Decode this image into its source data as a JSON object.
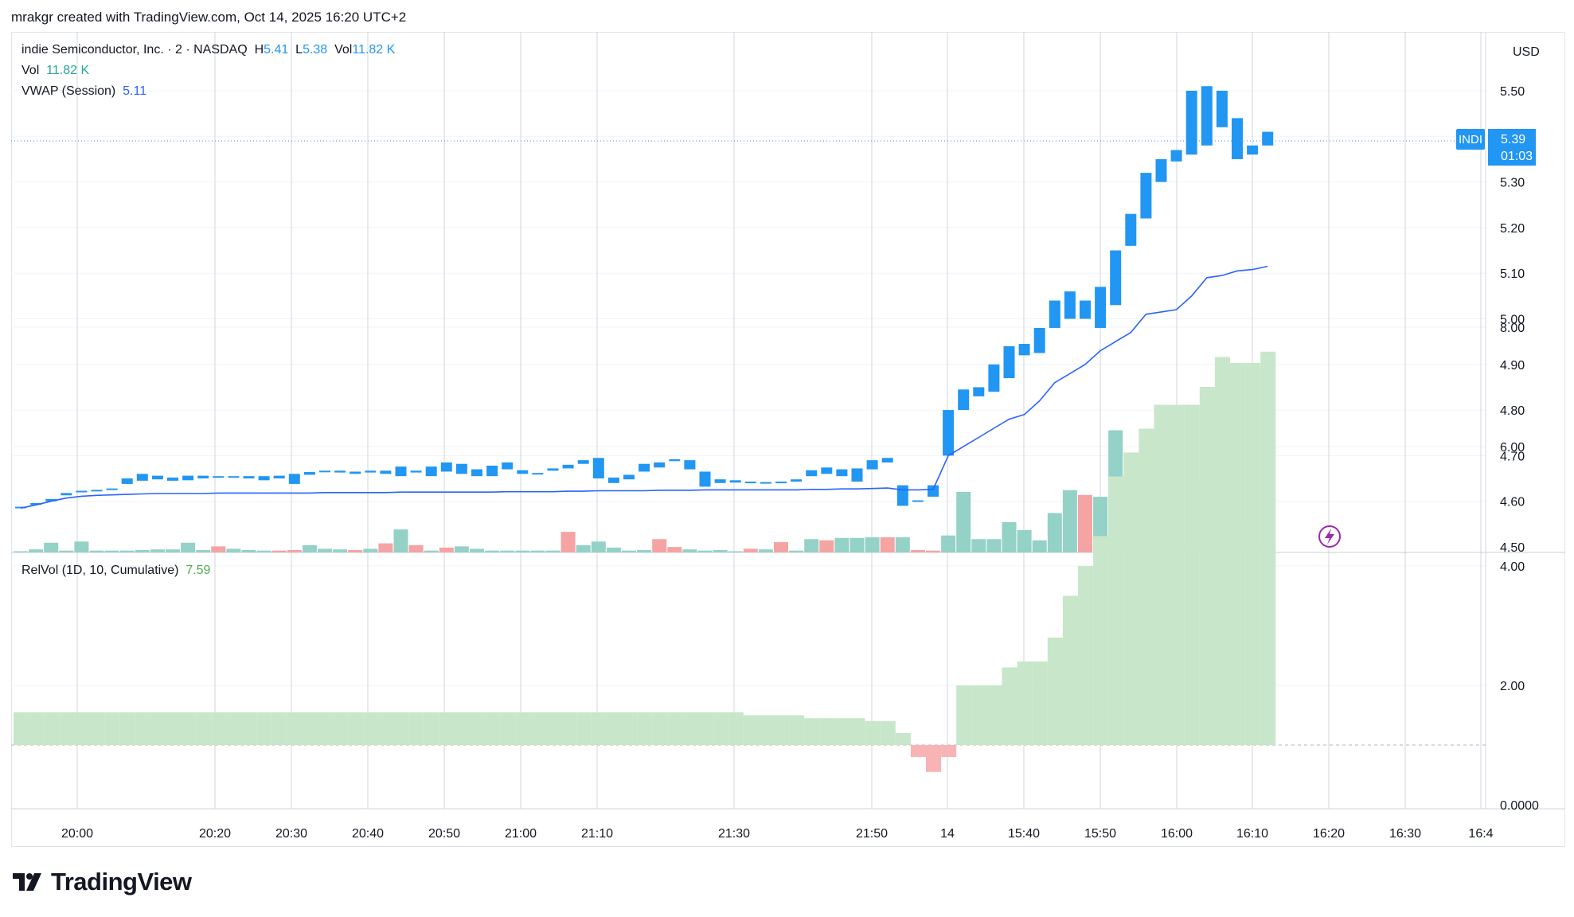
{
  "header": {
    "credit": "mrakgr created with TradingView.com, Oct 14, 2025 16:20 UTC+2"
  },
  "legend": {
    "symbol": "indie Semiconductor, Inc. · 2 · NASDAQ",
    "h_label": "H",
    "h_value": "5.41",
    "l_label": "L",
    "l_value": "5.38",
    "vol_label": "Vol",
    "vol_value": "11.82 K",
    "vol_row_label": "Vol",
    "vol_row_value": "11.82 K",
    "vwap_label": "VWAP (Session)",
    "vwap_value": "5.11",
    "relvol_label": "RelVol (1D, 10, Cumulative)",
    "relvol_value": "7.59"
  },
  "price_axis": {
    "currency": "USD"
  },
  "last_price": {
    "symbol": "INDI",
    "price": "5.39",
    "countdown": "01:03"
  },
  "footer": {
    "brand": "TradingView"
  },
  "colors": {
    "up": "#2196f3",
    "vol_up": "#94d1c7",
    "vol_down": "#f5a3a3",
    "vwap": "#2962ff",
    "relvol_pos": "#c8e6c9",
    "relvol_neg": "#f8b4b4",
    "grid": "#e0e3eb",
    "lightning": "#9c27b0"
  },
  "chart_data": {
    "type": "candlestick",
    "interval": "2",
    "price_range": [
      4.5,
      5.55
    ],
    "price_ticks": [
      "5.50",
      "5.30",
      "5.20",
      "5.10",
      "5.00",
      "4.90",
      "4.80",
      "4.70",
      "4.60",
      "4.50"
    ],
    "relvol_range": [
      0,
      8
    ],
    "relvol_ticks": [
      "8.00",
      "6.00",
      "4.00",
      "2.00",
      "0.0000"
    ],
    "time_ticks": [
      "20:00",
      "20:20",
      "20:30",
      "20:40",
      "20:50",
      "21:00",
      "21:10",
      "21:30",
      "21:50",
      "14",
      "15:40",
      "15:50",
      "16:00",
      "16:10",
      "16:20",
      "16:30",
      "16:4"
    ],
    "candles": [
      [
        4.585,
        4.588
      ],
      [
        4.592,
        4.596
      ],
      [
        4.6,
        4.605
      ],
      [
        4.613,
        4.618
      ],
      [
        4.622,
        4.623
      ],
      [
        4.624,
        4.625
      ],
      [
        4.627,
        4.628
      ],
      [
        4.638,
        4.65
      ],
      [
        4.645,
        4.66
      ],
      [
        4.648,
        4.656
      ],
      [
        4.645,
        4.652
      ],
      [
        4.646,
        4.656
      ],
      [
        4.65,
        4.656
      ],
      [
        4.653,
        4.655
      ],
      [
        4.654,
        4.655
      ],
      [
        4.65,
        4.655
      ],
      [
        4.646,
        4.655
      ],
      [
        4.65,
        4.656
      ],
      [
        4.638,
        4.66
      ],
      [
        4.658,
        4.664
      ],
      [
        4.665,
        4.667
      ],
      [
        4.663,
        4.667
      ],
      [
        4.66,
        4.665
      ],
      [
        4.663,
        4.667
      ],
      [
        4.66,
        4.667
      ],
      [
        4.655,
        4.676
      ],
      [
        4.663,
        4.667
      ],
      [
        4.655,
        4.676
      ],
      [
        4.665,
        4.685
      ],
      [
        4.66,
        4.682
      ],
      [
        4.655,
        4.67
      ],
      [
        4.655,
        4.678
      ],
      [
        4.67,
        4.685
      ],
      [
        4.66,
        4.668
      ],
      [
        4.661,
        4.662
      ],
      [
        4.667,
        4.672
      ],
      [
        4.672,
        4.68
      ],
      [
        4.682,
        4.69
      ],
      [
        4.65,
        4.695
      ],
      [
        4.64,
        4.652
      ],
      [
        4.648,
        4.658
      ],
      [
        4.665,
        4.682
      ],
      [
        4.674,
        4.685
      ],
      [
        4.688,
        4.692
      ],
      [
        4.67,
        4.69
      ],
      [
        4.632,
        4.665
      ],
      [
        4.64,
        4.648
      ],
      [
        4.641,
        4.646
      ],
      [
        4.64,
        4.643
      ],
      [
        4.64,
        4.642
      ],
      [
        4.64,
        4.643
      ],
      [
        4.643,
        4.648
      ],
      [
        4.655,
        4.668
      ],
      [
        4.66,
        4.674
      ],
      [
        4.655,
        4.67
      ],
      [
        4.643,
        4.672
      ],
      [
        4.67,
        4.69
      ],
      [
        4.685,
        4.695
      ],
      [
        4.59,
        4.635
      ],
      [
        4.6,
        4.602
      ],
      [
        4.61,
        4.635
      ],
      [
        4.7,
        4.8
      ],
      [
        4.8,
        4.845
      ],
      [
        4.83,
        4.85
      ],
      [
        4.84,
        4.9
      ],
      [
        4.87,
        4.94
      ],
      [
        4.92,
        4.945
      ],
      [
        4.925,
        4.98
      ],
      [
        4.98,
        5.04
      ],
      [
        5.0,
        5.06
      ],
      [
        5.0,
        5.04
      ],
      [
        4.98,
        5.07
      ],
      [
        5.03,
        5.15
      ],
      [
        5.16,
        5.23
      ],
      [
        5.22,
        5.32
      ],
      [
        5.3,
        5.35
      ],
      [
        5.345,
        5.37
      ],
      [
        5.36,
        5.5
      ],
      [
        5.38,
        5.51
      ],
      [
        5.42,
        5.5
      ],
      [
        5.35,
        5.44
      ],
      [
        5.36,
        5.38
      ],
      [
        5.38,
        5.41
      ]
    ],
    "volume": [
      [
        1,
        0.02
      ],
      [
        1,
        0.05
      ],
      [
        1,
        0.16
      ],
      [
        1,
        0.03
      ],
      [
        1,
        0.18
      ],
      [
        1,
        0.03
      ],
      [
        1,
        0.03
      ],
      [
        1,
        0.03
      ],
      [
        1,
        0.04
      ],
      [
        1,
        0.05
      ],
      [
        1,
        0.05
      ],
      [
        1,
        0.16
      ],
      [
        1,
        0.04
      ],
      [
        0,
        0.1
      ],
      [
        1,
        0.06
      ],
      [
        1,
        0.04
      ],
      [
        1,
        0.03
      ],
      [
        0,
        0.03
      ],
      [
        0,
        0.04
      ],
      [
        1,
        0.12
      ],
      [
        1,
        0.06
      ],
      [
        1,
        0.05
      ],
      [
        0,
        0.04
      ],
      [
        1,
        0.06
      ],
      [
        0,
        0.15
      ],
      [
        1,
        0.38
      ],
      [
        0,
        0.12
      ],
      [
        1,
        0.03
      ],
      [
        0,
        0.08
      ],
      [
        1,
        0.1
      ],
      [
        1,
        0.06
      ],
      [
        1,
        0.03
      ],
      [
        1,
        0.03
      ],
      [
        1,
        0.03
      ],
      [
        1,
        0.03
      ],
      [
        1,
        0.03
      ],
      [
        0,
        0.34
      ],
      [
        1,
        0.12
      ],
      [
        1,
        0.18
      ],
      [
        1,
        0.08
      ],
      [
        1,
        0.03
      ],
      [
        1,
        0.04
      ],
      [
        0,
        0.22
      ],
      [
        0,
        0.09
      ],
      [
        1,
        0.05
      ],
      [
        1,
        0.03
      ],
      [
        1,
        0.04
      ],
      [
        1,
        0.02
      ],
      [
        0,
        0.06
      ],
      [
        1,
        0.05
      ],
      [
        0,
        0.17
      ],
      [
        1,
        0.03
      ],
      [
        1,
        0.22
      ],
      [
        0,
        0.2
      ],
      [
        1,
        0.24
      ],
      [
        1,
        0.24
      ],
      [
        1,
        0.25
      ],
      [
        0,
        0.25
      ],
      [
        1,
        0.25
      ],
      [
        0,
        0.04
      ],
      [
        0,
        0.03
      ],
      [
        1,
        0.28
      ],
      [
        1,
        1.0
      ],
      [
        1,
        0.22
      ],
      [
        1,
        0.22
      ],
      [
        1,
        0.5
      ],
      [
        1,
        0.37
      ],
      [
        1,
        0.2
      ],
      [
        1,
        0.65
      ],
      [
        1,
        1.03
      ],
      [
        0,
        0.95
      ],
      [
        1,
        0.92
      ],
      [
        1,
        2.02
      ],
      [
        1,
        1.29
      ],
      [
        1,
        0.9
      ],
      [
        1,
        1.0
      ],
      [
        1,
        0.25
      ],
      [
        1,
        0.12
      ],
      [
        1,
        1.2
      ],
      [
        1,
        1.4
      ],
      [
        0,
        0.24
      ],
      [
        0,
        0.43
      ],
      [
        0,
        0.14
      ]
    ],
    "vwap": [
      4.585,
      4.592,
      4.6,
      4.607,
      4.611,
      4.613,
      4.614,
      4.615,
      4.616,
      4.617,
      4.617,
      4.617,
      4.617,
      4.618,
      4.618,
      4.618,
      4.618,
      4.618,
      4.618,
      4.618,
      4.619,
      4.619,
      4.619,
      4.619,
      4.619,
      4.62,
      4.62,
      4.62,
      4.62,
      4.62,
      4.62,
      4.62,
      4.621,
      4.621,
      4.621,
      4.621,
      4.622,
      4.622,
      4.623,
      4.623,
      4.623,
      4.623,
      4.624,
      4.624,
      4.624,
      4.625,
      4.625,
      4.625,
      4.625,
      4.625,
      4.625,
      4.625,
      4.626,
      4.626,
      4.627,
      4.627,
      4.628,
      4.629,
      4.625,
      4.625,
      4.626,
      4.7,
      4.72,
      4.74,
      4.76,
      4.78,
      4.79,
      4.82,
      4.86,
      4.88,
      4.9,
      4.93,
      4.95,
      4.97,
      5.01,
      5.015,
      5.02,
      5.05,
      5.09,
      5.095,
      5.105,
      5.108,
      5.115
    ],
    "relvol": [
      1.55,
      1.55,
      1.55,
      1.55,
      1.55,
      1.55,
      1.55,
      1.55,
      1.55,
      1.55,
      1.55,
      1.55,
      1.55,
      1.55,
      1.55,
      1.55,
      1.55,
      1.55,
      1.55,
      1.55,
      1.55,
      1.55,
      1.55,
      1.55,
      1.55,
      1.55,
      1.55,
      1.55,
      1.55,
      1.55,
      1.55,
      1.55,
      1.55,
      1.55,
      1.55,
      1.55,
      1.55,
      1.55,
      1.55,
      1.55,
      1.55,
      1.55,
      1.55,
      1.55,
      1.55,
      1.55,
      1.55,
      1.55,
      1.5,
      1.5,
      1.5,
      1.5,
      1.45,
      1.45,
      1.45,
      1.45,
      1.4,
      1.4,
      1.2,
      0.8,
      0.55,
      0.8,
      2.0,
      2.0,
      2.0,
      2.3,
      2.4,
      2.4,
      2.8,
      3.5,
      4.0,
      4.5,
      5.5,
      5.9,
      6.3,
      6.7,
      6.7,
      6.7,
      7.0,
      7.5,
      7.4,
      7.4,
      7.59
    ]
  }
}
